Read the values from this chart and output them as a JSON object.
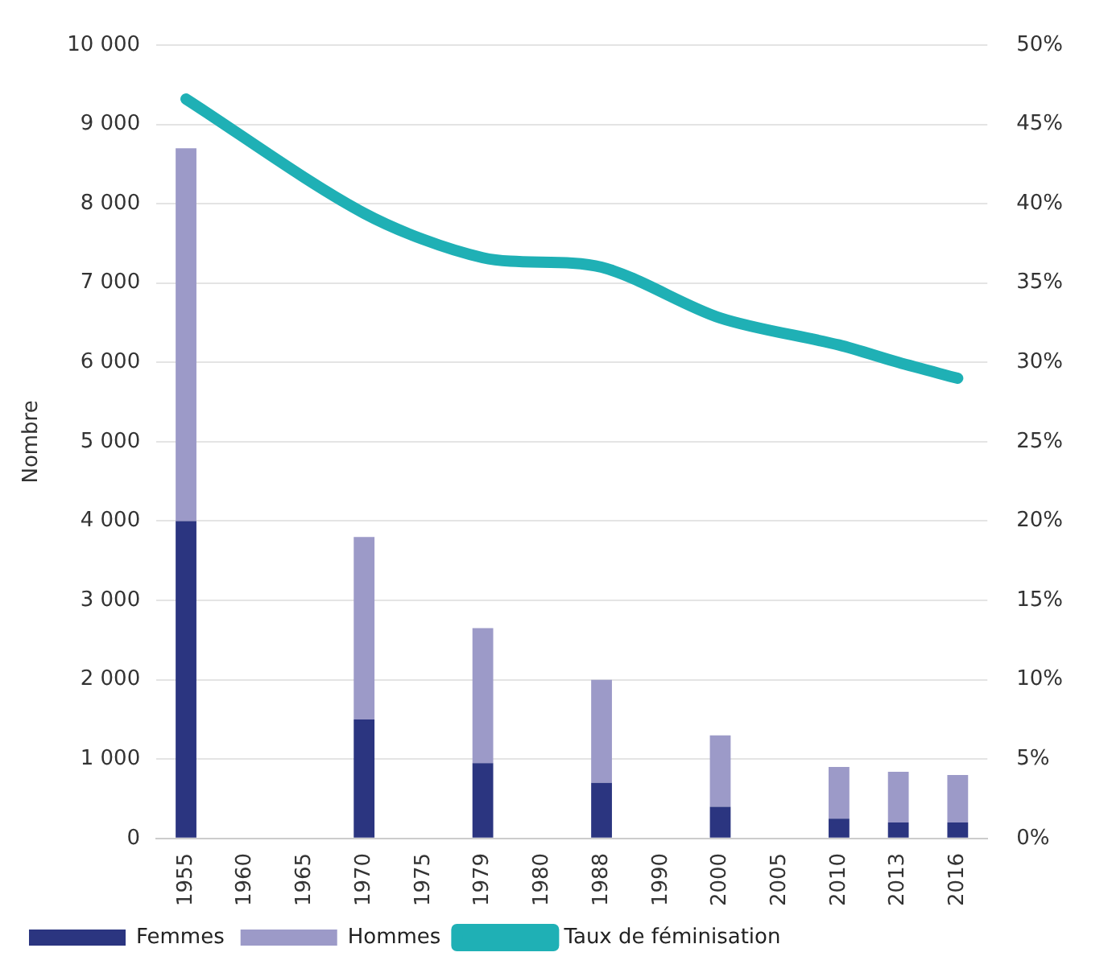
{
  "chart_data": {
    "type": "bar",
    "stacked": true,
    "ylabel": "Nombre",
    "categories": [
      "1955",
      "1960",
      "1965",
      "1970",
      "1975",
      "1979",
      "1980",
      "1988",
      "1990",
      "2000",
      "2005",
      "2010",
      "2013",
      "2016"
    ],
    "series": [
      {
        "name": "Femmes",
        "color": "#2b3580",
        "values": [
          4000,
          null,
          null,
          1500,
          null,
          950,
          null,
          700,
          null,
          400,
          null,
          250,
          200,
          200
        ]
      },
      {
        "name": "Hommes",
        "color": "#9c9ac8",
        "values": [
          4700,
          null,
          null,
          2300,
          null,
          1700,
          null,
          1300,
          null,
          900,
          null,
          650,
          640,
          600
        ]
      },
      {
        "name": "Taux de féminisation",
        "type": "line",
        "axis": "y2",
        "color": "#1fb0b5",
        "values": [
          46.6,
          null,
          null,
          39.4,
          null,
          36.6,
          null,
          36.0,
          null,
          32.8,
          null,
          31.1,
          30.0,
          29.0
        ]
      }
    ],
    "ylim": [
      0,
      10000
    ],
    "yticks": [
      0,
      {
        "value": 1000,
        "label": "1 000"
      },
      {
        "value": 2000,
        "label": "2 000"
      },
      {
        "value": 3000,
        "label": "3 000"
      },
      {
        "value": 4000,
        "label": "4 000"
      },
      {
        "value": 5000,
        "label": "5 000"
      },
      {
        "value": 6000,
        "label": "6 000"
      },
      {
        "value": 7000,
        "label": "7 000"
      },
      {
        "value": 8000,
        "label": "8 000"
      },
      {
        "value": 9000,
        "label": "9 000"
      },
      {
        "value": 10000,
        "label": "10 000"
      }
    ],
    "y2lim": [
      0,
      50
    ],
    "y2ticks": [
      {
        "value": 0,
        "label": "0%"
      },
      {
        "value": 5,
        "label": "5%"
      },
      {
        "value": 10,
        "label": "10%"
      },
      {
        "value": 15,
        "label": "15%"
      },
      {
        "value": 20,
        "label": "20%"
      },
      {
        "value": 25,
        "label": "25%"
      },
      {
        "value": 30,
        "label": "30%"
      },
      {
        "value": 35,
        "label": "35%"
      },
      {
        "value": 40,
        "label": "40%"
      },
      {
        "value": 45,
        "label": "45%"
      },
      {
        "value": 50,
        "label": "50%"
      }
    ],
    "grid": "y",
    "legend": "bottom left",
    "marker": "none",
    "line_style": "solid"
  }
}
